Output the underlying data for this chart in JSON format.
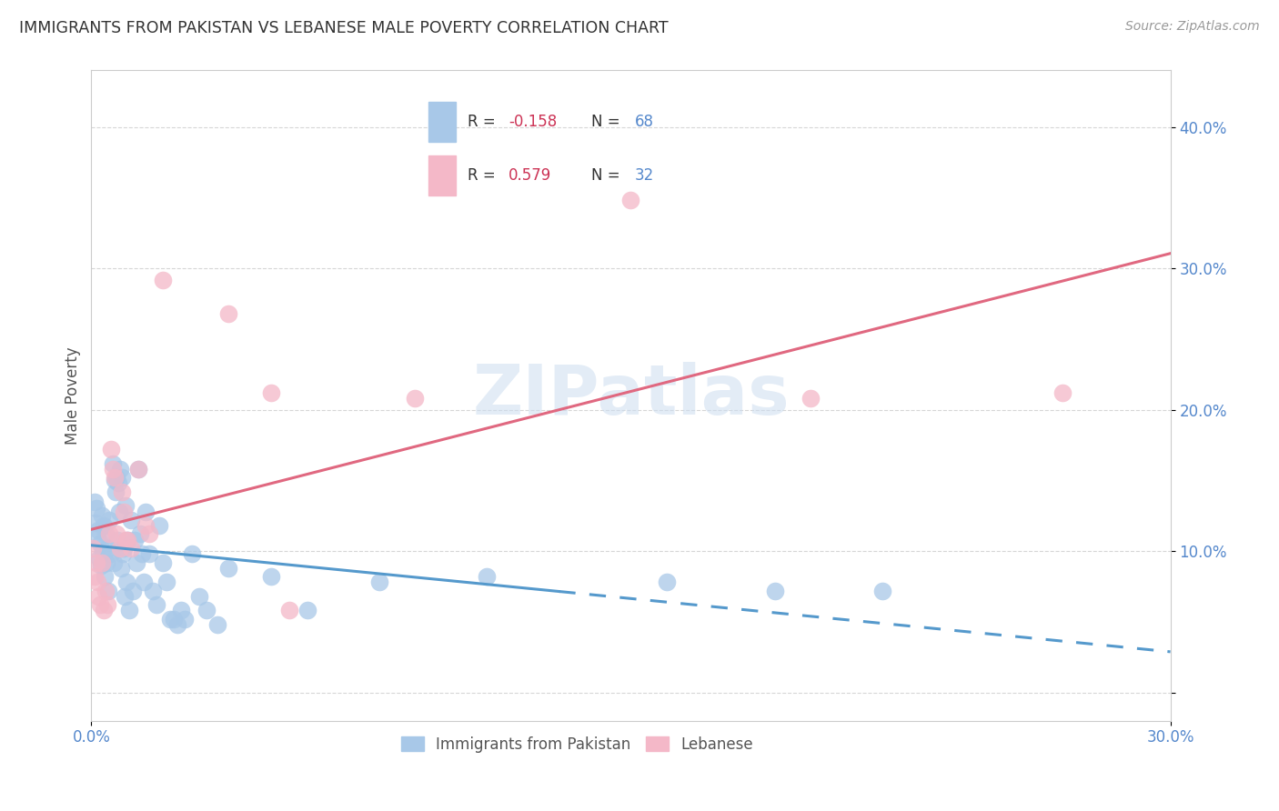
{
  "title": "IMMIGRANTS FROM PAKISTAN VS LEBANESE MALE POVERTY CORRELATION CHART",
  "source": "Source: ZipAtlas.com",
  "ylabel": "Male Poverty",
  "xlim": [
    0.0,
    0.3
  ],
  "ylim": [
    -0.02,
    0.44
  ],
  "xticks": [
    0.0,
    0.3
  ],
  "yticks": [
    0.0,
    0.1,
    0.2,
    0.3,
    0.4
  ],
  "pakistan_color": "#a8c8e8",
  "lebanese_color": "#f4b8c8",
  "trend_pak_color": "#5599cc",
  "trend_leb_color": "#e06880",
  "watermark": "ZIPatlas",
  "background_color": "#ffffff",
  "grid_color": "#cccccc",
  "tick_label_color": "#5588cc",
  "title_color": "#333333",
  "pakistan_scatter": [
    [
      0.0008,
      0.135
    ],
    [
      0.0012,
      0.12
    ],
    [
      0.0015,
      0.13
    ],
    [
      0.0018,
      0.11
    ],
    [
      0.002,
      0.115
    ],
    [
      0.0022,
      0.095
    ],
    [
      0.0025,
      0.105
    ],
    [
      0.0028,
      0.09
    ],
    [
      0.003,
      0.125
    ],
    [
      0.0032,
      0.1
    ],
    [
      0.0035,
      0.118
    ],
    [
      0.0038,
      0.082
    ],
    [
      0.004,
      0.112
    ],
    [
      0.0042,
      0.092
    ],
    [
      0.0045,
      0.102
    ],
    [
      0.0048,
      0.072
    ],
    [
      0.005,
      0.122
    ],
    [
      0.0055,
      0.098
    ],
    [
      0.006,
      0.162
    ],
    [
      0.0062,
      0.092
    ],
    [
      0.0065,
      0.15
    ],
    [
      0.0068,
      0.142
    ],
    [
      0.007,
      0.152
    ],
    [
      0.0072,
      0.108
    ],
    [
      0.0075,
      0.148
    ],
    [
      0.0078,
      0.128
    ],
    [
      0.008,
      0.158
    ],
    [
      0.0082,
      0.088
    ],
    [
      0.0085,
      0.152
    ],
    [
      0.0088,
      0.098
    ],
    [
      0.009,
      0.102
    ],
    [
      0.0092,
      0.068
    ],
    [
      0.0095,
      0.132
    ],
    [
      0.0098,
      0.078
    ],
    [
      0.01,
      0.108
    ],
    [
      0.0105,
      0.058
    ],
    [
      0.011,
      0.122
    ],
    [
      0.0115,
      0.072
    ],
    [
      0.012,
      0.108
    ],
    [
      0.0125,
      0.092
    ],
    [
      0.013,
      0.158
    ],
    [
      0.0135,
      0.112
    ],
    [
      0.014,
      0.098
    ],
    [
      0.0145,
      0.078
    ],
    [
      0.015,
      0.128
    ],
    [
      0.016,
      0.098
    ],
    [
      0.017,
      0.072
    ],
    [
      0.018,
      0.062
    ],
    [
      0.019,
      0.118
    ],
    [
      0.02,
      0.092
    ],
    [
      0.021,
      0.078
    ],
    [
      0.022,
      0.052
    ],
    [
      0.023,
      0.052
    ],
    [
      0.024,
      0.048
    ],
    [
      0.025,
      0.058
    ],
    [
      0.026,
      0.052
    ],
    [
      0.028,
      0.098
    ],
    [
      0.03,
      0.068
    ],
    [
      0.032,
      0.058
    ],
    [
      0.035,
      0.048
    ],
    [
      0.038,
      0.088
    ],
    [
      0.05,
      0.082
    ],
    [
      0.06,
      0.058
    ],
    [
      0.08,
      0.078
    ],
    [
      0.11,
      0.082
    ],
    [
      0.16,
      0.078
    ],
    [
      0.19,
      0.072
    ],
    [
      0.22,
      0.072
    ]
  ],
  "lebanese_scatter": [
    [
      0.0005,
      0.102
    ],
    [
      0.001,
      0.082
    ],
    [
      0.0015,
      0.092
    ],
    [
      0.0018,
      0.078
    ],
    [
      0.002,
      0.068
    ],
    [
      0.0025,
      0.062
    ],
    [
      0.003,
      0.092
    ],
    [
      0.0035,
      0.058
    ],
    [
      0.004,
      0.072
    ],
    [
      0.0045,
      0.062
    ],
    [
      0.005,
      0.112
    ],
    [
      0.0055,
      0.172
    ],
    [
      0.006,
      0.158
    ],
    [
      0.0065,
      0.152
    ],
    [
      0.007,
      0.112
    ],
    [
      0.008,
      0.102
    ],
    [
      0.0085,
      0.142
    ],
    [
      0.009,
      0.128
    ],
    [
      0.0095,
      0.108
    ],
    [
      0.01,
      0.108
    ],
    [
      0.011,
      0.102
    ],
    [
      0.013,
      0.158
    ],
    [
      0.015,
      0.118
    ],
    [
      0.016,
      0.112
    ],
    [
      0.02,
      0.292
    ],
    [
      0.038,
      0.268
    ],
    [
      0.05,
      0.212
    ],
    [
      0.055,
      0.058
    ],
    [
      0.09,
      0.208
    ],
    [
      0.15,
      0.348
    ],
    [
      0.2,
      0.208
    ],
    [
      0.27,
      0.212
    ]
  ],
  "pak_trend_solid_end": 0.13,
  "pak_trend_dash_start": 0.13,
  "leb_trend_end": 0.3
}
